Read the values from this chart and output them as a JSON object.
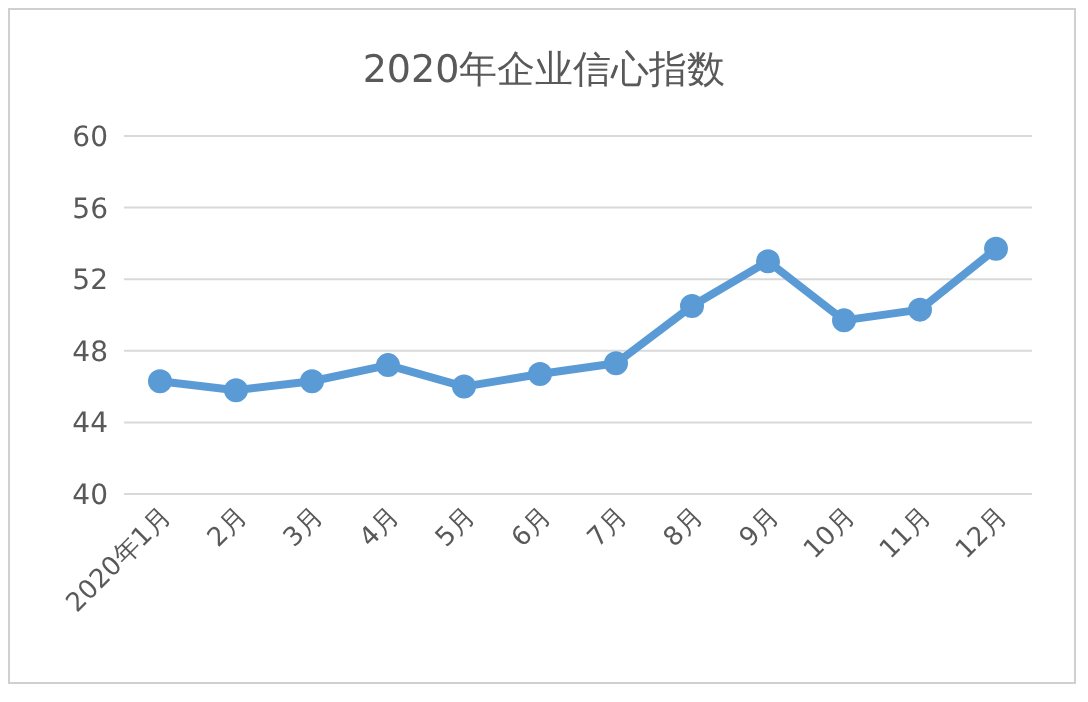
{
  "chart_data": {
    "type": "line",
    "title": "2020年企业信心指数",
    "categories": [
      "2020年1月",
      "2月",
      "3月",
      "4月",
      "5月",
      "6月",
      "7月",
      "8月",
      "9月",
      "10月",
      "11月",
      "12月"
    ],
    "series": [
      {
        "color": "#5b9bd5",
        "values": [
          46.3,
          45.8,
          46.3,
          47.2,
          46.0,
          46.7,
          47.3,
          50.5,
          53.0,
          49.7,
          50.3,
          53.7
        ]
      }
    ],
    "ylim": [
      40,
      60
    ],
    "yticks": [
      40,
      44,
      48,
      52,
      56,
      60
    ],
    "grid": "y",
    "marker": "circle"
  }
}
